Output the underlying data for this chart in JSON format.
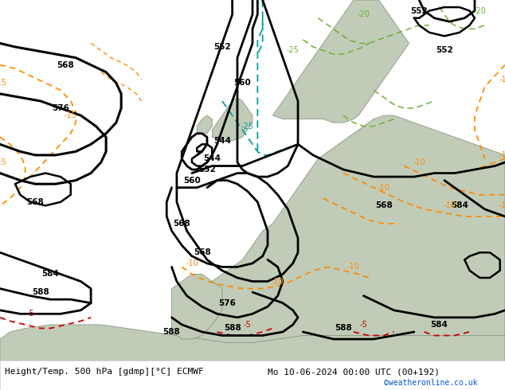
{
  "title_left": "Height/Temp. 500 hPa [gdmp][°C] ECMWF",
  "title_right": "Mo 10-06-2024 00:00 UTC (00+192)",
  "watermark": "©weatheronline.co.uk",
  "bg_green": "#c8e6c0",
  "land_gray": "#b8c8b0",
  "footer_bg": "#ffffff",
  "figsize": [
    6.34,
    4.9
  ],
  "dpi": 100
}
